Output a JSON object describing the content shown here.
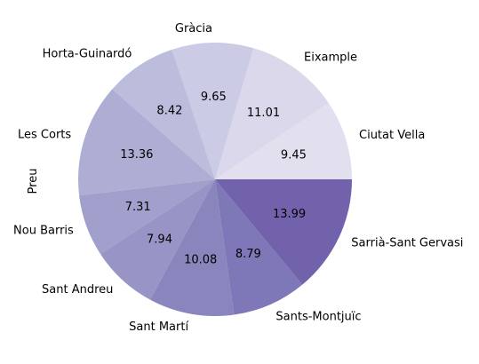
{
  "chart_data": {
    "type": "pie",
    "ylabel": "Preu",
    "start_angle_deg": 0,
    "direction": "counterclockwise",
    "slices": [
      {
        "label": "Ciutat Vella",
        "value": 9.45,
        "color": "#e2e0ef"
      },
      {
        "label": "Eixample",
        "value": 11.01,
        "color": "#dad8ea"
      },
      {
        "label": "Gràcia",
        "value": 9.65,
        "color": "#cbcbe5"
      },
      {
        "label": "Horta-Guinardó",
        "value": 8.42,
        "color": "#bcbddc"
      },
      {
        "label": "Les Corts",
        "value": 13.36,
        "color": "#aeaed4"
      },
      {
        "label": "Nou Barris",
        "value": 7.31,
        "color": "#a19fcb"
      },
      {
        "label": "Sant Andreu",
        "value": 7.94,
        "color": "#9895c6"
      },
      {
        "label": "Sant Martí",
        "value": 10.08,
        "color": "#8985bd"
      },
      {
        "label": "Sants-Montjuïc",
        "value": 8.79,
        "color": "#7e77b8"
      },
      {
        "label": "Sarrià-Sant Gervasi",
        "value": 13.99,
        "color": "#7262ac"
      }
    ]
  }
}
